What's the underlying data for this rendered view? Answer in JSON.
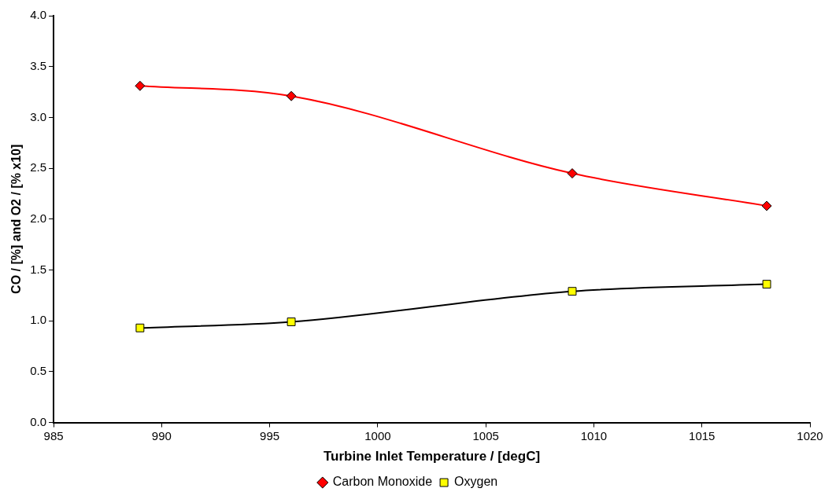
{
  "chart_data": {
    "type": "line",
    "xlabel": "Turbine Inlet Temperature / [degC]",
    "ylabel": "CO / [%] and O2 / [% x10]",
    "x": [
      989,
      996,
      1009,
      1018
    ],
    "series": [
      {
        "name": "Carbon Monoxide",
        "color": "#ff0000",
        "marker": "diamond",
        "values": [
          3.31,
          3.21,
          2.45,
          2.13
        ]
      },
      {
        "name": "Oxygen",
        "color": "#000000",
        "marker": "square",
        "values": [
          0.93,
          0.99,
          1.29,
          1.36
        ]
      }
    ],
    "xlim": [
      985,
      1020
    ],
    "xticks": [
      985,
      990,
      995,
      1000,
      1005,
      1010,
      1015,
      1020
    ],
    "ylim": [
      0,
      4
    ],
    "yticks": [
      {
        "value": 0,
        "label": "0.0"
      },
      {
        "value": 0.5,
        "label": "0.5"
      },
      {
        "value": 1,
        "label": "1.0"
      },
      {
        "value": 1.5,
        "label": "1.5"
      },
      {
        "value": 2,
        "label": "2.0"
      },
      {
        "value": 2.5,
        "label": "2.5"
      },
      {
        "value": 3,
        "label": "3.0"
      },
      {
        "value": 3.5,
        "label": "3.5"
      },
      {
        "value": 4,
        "label": "4.0"
      }
    ],
    "grid": false,
    "legend": "bottom",
    "line_style": "solid"
  }
}
